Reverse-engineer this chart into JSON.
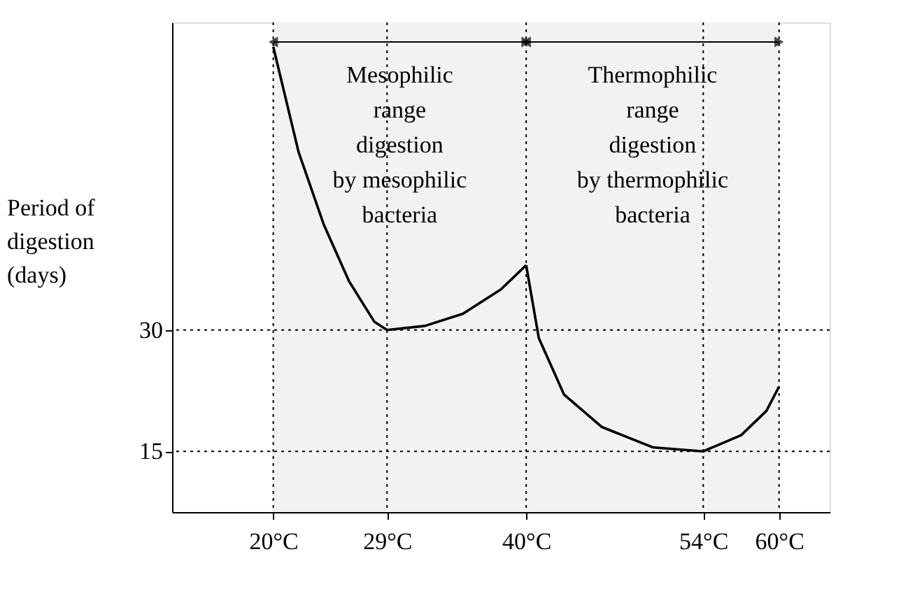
{
  "chart_data": {
    "type": "line",
    "ylabel": "Period of\ndigestion\n(days)",
    "series": [
      {
        "color": "#000000",
        "x": [
          20,
          22,
          24,
          26,
          28,
          29,
          32,
          35,
          38,
          40
        ],
        "values": [
          65,
          52,
          43,
          36,
          31,
          30,
          30.5,
          32,
          35,
          38
        ]
      },
      {
        "color": "#000000",
        "x": [
          40,
          41,
          43,
          46,
          50,
          54,
          57,
          59,
          60
        ],
        "values": [
          38,
          29,
          22,
          18,
          15.5,
          15,
          17,
          20,
          23
        ]
      }
    ],
    "xlim": [
      12,
      64
    ],
    "ylim": [
      7.5,
      68
    ],
    "xticks": [
      {
        "value": 20,
        "label": "20°C"
      },
      {
        "value": 29,
        "label": "29°C"
      },
      {
        "value": 40,
        "label": "40°C"
      },
      {
        "value": 54,
        "label": "54°C"
      },
      {
        "value": 60,
        "label": "60°C"
      }
    ],
    "yticks": [
      15,
      30
    ],
    "ref_lines": [
      {
        "axis": "x",
        "value": 20,
        "line_style": "dotted"
      },
      {
        "axis": "x",
        "value": 29,
        "line_style": "dotted"
      },
      {
        "axis": "x",
        "value": 40,
        "line_style": "dotted"
      },
      {
        "axis": "x",
        "value": 54,
        "line_style": "dotted"
      },
      {
        "axis": "x",
        "value": 60,
        "line_style": "dotted"
      },
      {
        "axis": "y",
        "value": 30,
        "line_style": "dotted"
      },
      {
        "axis": "y",
        "value": 15,
        "line_style": "dotted"
      }
    ],
    "bands": [
      {
        "axis": "x",
        "from": 20,
        "to": 40,
        "color": "#f2f2f2",
        "label": "Mesophilic\nrange\ndigestion\nby mesophilic\nbacteria"
      },
      {
        "axis": "x",
        "from": 40,
        "to": 60,
        "color": "#f2f2f2",
        "label": "Thermophilic\nrange\ndigestion\nby thermophilic\nbacteria"
      }
    ],
    "grid": false,
    "marker": "none",
    "line_style": "solid"
  }
}
